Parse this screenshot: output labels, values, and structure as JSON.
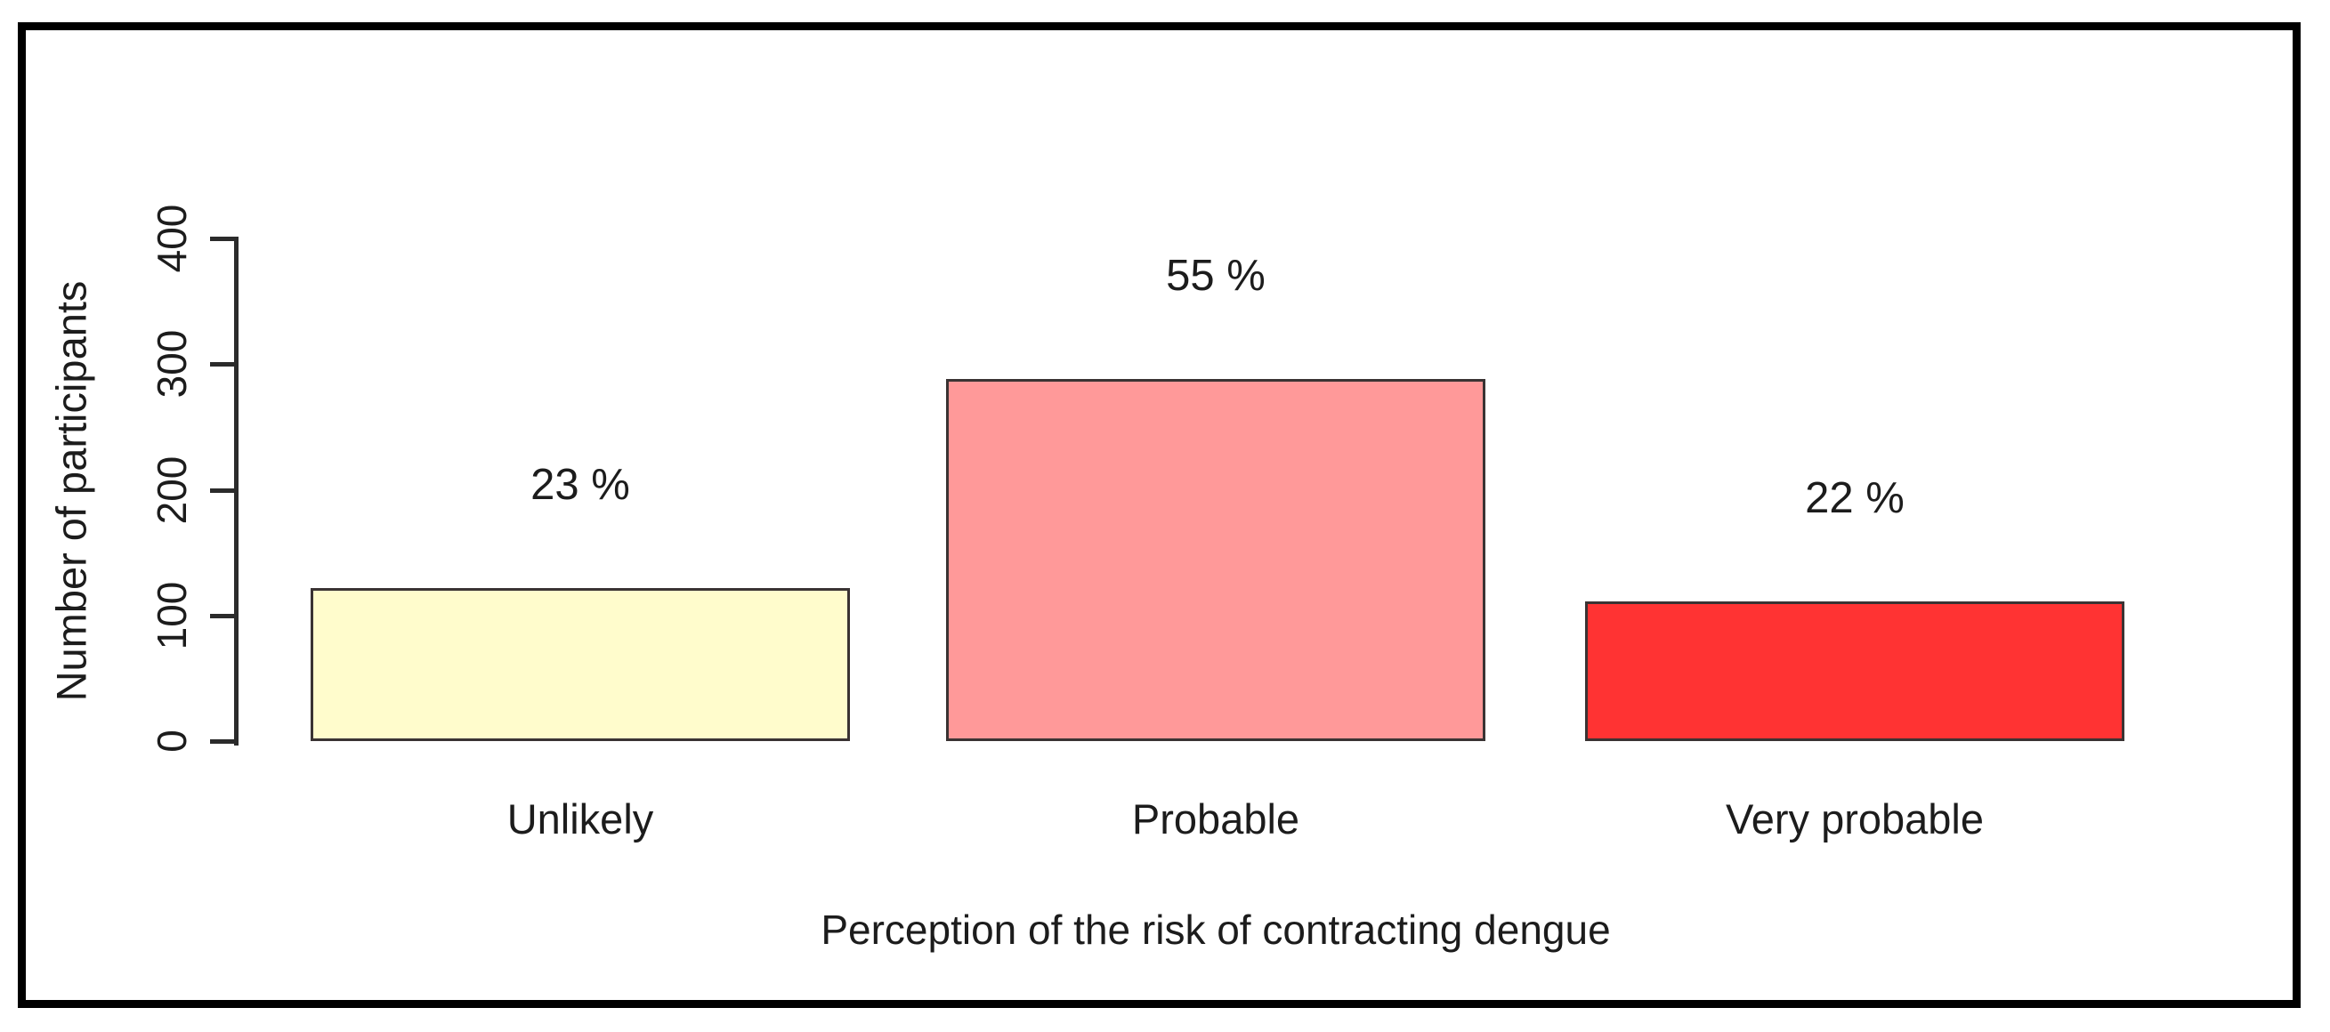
{
  "chart_data": {
    "type": "bar",
    "title": "",
    "categories": [
      "Unlikely",
      "Probable",
      "Very probable"
    ],
    "values": [
      122,
      288,
      111
    ],
    "bar_labels": [
      "23 %",
      "55 %",
      "22 %"
    ],
    "bar_colors": [
      "#fffccc",
      "#ff9999",
      "#ff3333"
    ],
    "bar_border_color": "#3a3333",
    "xlabel": "Perception of the risk of contracting dengue",
    "ylabel": "Number of participants",
    "ylim": [
      0,
      400
    ],
    "yticks": [
      "0",
      "100",
      "200",
      "300",
      "400"
    ],
    "ytick_values": [
      0,
      100,
      200,
      300,
      400
    ],
    "grid": false,
    "legend": "none",
    "background": "#ffffff",
    "frame_color": "#000000",
    "axis_color": "#2b2b2b",
    "text_color": "#1c1c1c"
  }
}
